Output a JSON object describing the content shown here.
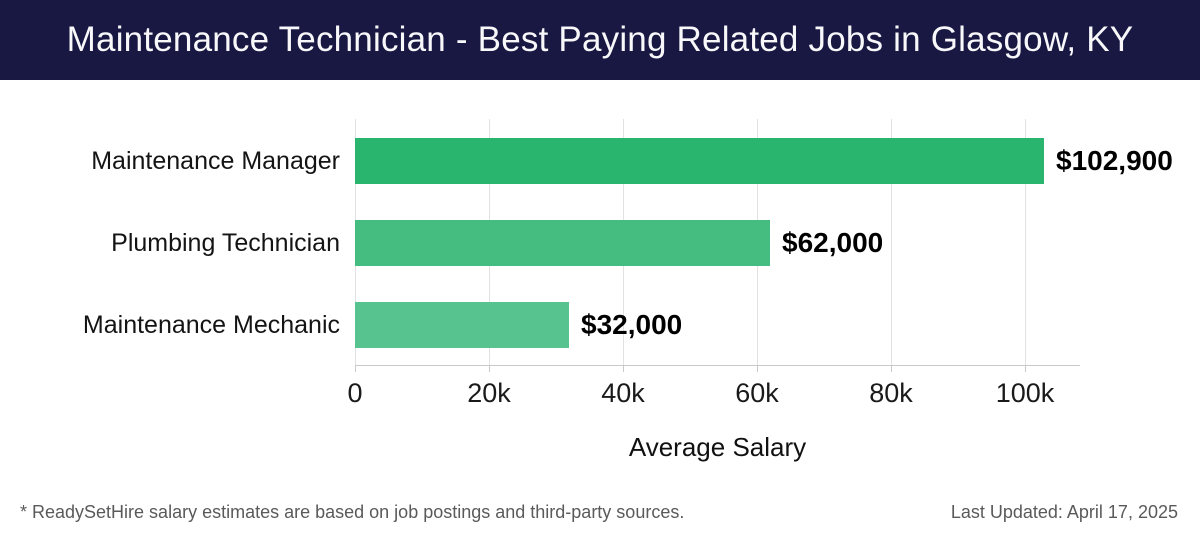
{
  "header": {
    "title": "Maintenance Technician - Best Paying Related Jobs in Glasgow, KY",
    "bg_color": "#181843"
  },
  "chart_data": {
    "type": "bar",
    "orientation": "horizontal",
    "title": "Maintenance Technician - Best Paying Related Jobs in Glasgow, KY",
    "categories": [
      "Maintenance Manager",
      "Plumbing Technician",
      "Maintenance Mechanic"
    ],
    "values": [
      102900,
      62000,
      32000
    ],
    "value_labels": [
      "$102,900",
      "$62,000",
      "$32,000"
    ],
    "bar_colors": [
      "#29b56d",
      "#45bd80",
      "#57c38f"
    ],
    "xlabel": "Average Salary",
    "ylabel": "",
    "x_ticks": [
      "0",
      "20k",
      "40k",
      "60k",
      "80k",
      "100k"
    ],
    "x_tick_values": [
      0,
      20000,
      40000,
      60000,
      80000,
      100000
    ],
    "xlim": [
      0,
      108200
    ],
    "grid": true,
    "gridline_color": "#e2e2e2",
    "legend": false
  },
  "footer": {
    "note": "* ReadySetHire salary estimates are based on job postings and third-party sources.",
    "last_updated": "Last Updated: April 17, 2025"
  }
}
